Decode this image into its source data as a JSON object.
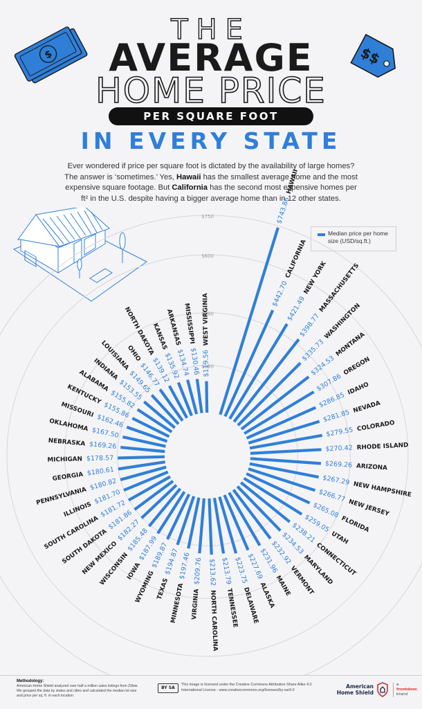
{
  "header": {
    "title_line1": "THE",
    "title_line2": "AVERAGE",
    "title_line3": "HOME PRICE",
    "title_pill": "PER SQUARE FOOT",
    "title_line4": "IN EVERY STATE"
  },
  "intro": {
    "part1": "Ever wondered if price per square foot is dictated by the availability of large homes? The answer is ‘sometimes.’ Yes, ",
    "hawaii": "Hawaii",
    "part2": " has the smallest average home and the most expensive square footage. But ",
    "california": "California",
    "part3": " has the second most expensive homes per ft² in the U.S. despite having a bigger average home than in 12 other states."
  },
  "legend": {
    "label": "Median price per home size (USD/sq.ft.)",
    "color": "#2f7fd9"
  },
  "icons": [
    "dollar-bill-icon",
    "price-tag-icon",
    "house-illustration-icon"
  ],
  "chart_data": {
    "type": "bar",
    "layout": "radial",
    "title": "THE AVERAGE HOME PRICE PER SQUARE FOOT IN EVERY STATE",
    "series": [
      {
        "name": "Median price per home size (USD/sq.ft.)",
        "color": "#2f7fd9"
      }
    ],
    "ring_labels": [
      "$180",
      "$380",
      "$600",
      "$750"
    ],
    "ring_values": [
      180,
      380,
      600,
      750
    ],
    "states": [
      {
        "name": "HAWAII",
        "value": 743.86,
        "label": "$743.86"
      },
      {
        "name": "CALIFORNIA",
        "value": 442.7,
        "label": "$442.70"
      },
      {
        "name": "NEW YORK",
        "value": 421.49,
        "label": "$421.49"
      },
      {
        "name": "MASSACHUSETTS",
        "value": 398.77,
        "label": "$398.77"
      },
      {
        "name": "WASHINGTON",
        "value": 335.73,
        "label": "$335.73"
      },
      {
        "name": "MONTANA",
        "value": 324.53,
        "label": "$324.53"
      },
      {
        "name": "OREGON",
        "value": 307.86,
        "label": "$307.86"
      },
      {
        "name": "IDAHO",
        "value": 286.85,
        "label": "$286.85"
      },
      {
        "name": "NEVADA",
        "value": 281.85,
        "label": "$281.85"
      },
      {
        "name": "COLORADO",
        "value": 279.55,
        "label": "$279.55"
      },
      {
        "name": "RHODE ISLAND",
        "value": 270.42,
        "label": "$270.42"
      },
      {
        "name": "ARIZONA",
        "value": 269.26,
        "label": "$269.26"
      },
      {
        "name": "NEW HAMPSHIRE",
        "value": 267.29,
        "label": "$267.29"
      },
      {
        "name": "NEW JERSEY",
        "value": 266.77,
        "label": "$266.77"
      },
      {
        "name": "FLORIDA",
        "value": 265.08,
        "label": "$265.08"
      },
      {
        "name": "UTAH",
        "value": 259.05,
        "label": "$259.05"
      },
      {
        "name": "CONNECTICUT",
        "value": 238.21,
        "label": "$238.21"
      },
      {
        "name": "MARYLAND",
        "value": 234.53,
        "label": "$234.53"
      },
      {
        "name": "VERMONT",
        "value": 232.92,
        "label": "$232.92"
      },
      {
        "name": "MAINE",
        "value": 231.96,
        "label": "$231.96"
      },
      {
        "name": "ALASKA",
        "value": 227.69,
        "label": "$227.69"
      },
      {
        "name": "DELAWARE",
        "value": 223.75,
        "label": "$223.75"
      },
      {
        "name": "TENNESSEE",
        "value": 213.79,
        "label": "$213.79"
      },
      {
        "name": "NORTH CAROLINA",
        "value": 213.62,
        "label": "$213.62"
      },
      {
        "name": "VIRGINIA",
        "value": 209.76,
        "label": "$209.76"
      },
      {
        "name": "MINNESOTA",
        "value": 197.46,
        "label": "$197.46"
      },
      {
        "name": "TEXAS",
        "value": 194.87,
        "label": "$194.87"
      },
      {
        "name": "WYOMING",
        "value": 189.87,
        "label": "$189.87"
      },
      {
        "name": "IOWA",
        "value": 187.99,
        "label": "$187.99"
      },
      {
        "name": "WISCONSIN",
        "value": 185.48,
        "label": "$185.48"
      },
      {
        "name": "NEW MEXICO",
        "value": 182.27,
        "label": "$182.27"
      },
      {
        "name": "SOUTH DAKOTA",
        "value": 181.86,
        "label": "$181.86"
      },
      {
        "name": "SOUTH CAROLINA",
        "value": 181.72,
        "label": "$181.72"
      },
      {
        "name": "ILLINOIS",
        "value": 181.7,
        "label": "$181.70"
      },
      {
        "name": "PENNSYLVANIA",
        "value": 180.82,
        "label": "$180.82"
      },
      {
        "name": "GEORGIA",
        "value": 180.61,
        "label": "$180.61"
      },
      {
        "name": "MICHIGAN",
        "value": 178.57,
        "label": "$178.57"
      },
      {
        "name": "NEBRASKA",
        "value": 169.26,
        "label": "$169.26"
      },
      {
        "name": "OKLAHOMA",
        "value": 167.5,
        "label": "$167.50"
      },
      {
        "name": "MISSOURI",
        "value": 162.46,
        "label": "$162.46"
      },
      {
        "name": "KENTUCKY",
        "value": 155.86,
        "label": "$155.86"
      },
      {
        "name": "ALABAMA",
        "value": 155.82,
        "label": "$155.82"
      },
      {
        "name": "INDIANA",
        "value": 153.55,
        "label": "$153.55"
      },
      {
        "name": "LOUISIANA",
        "value": 149.65,
        "label": "$149.65"
      },
      {
        "name": "OHIO",
        "value": 146.77,
        "label": "$146.77"
      },
      {
        "name": "NORTH DAKOTA",
        "value": 139.12,
        "label": "$139.12"
      },
      {
        "name": "KANSAS",
        "value": 135.92,
        "label": "$135.92"
      },
      {
        "name": "ARKANSAS",
        "value": 134.74,
        "label": "$134.74"
      },
      {
        "name": "MISSISSIPPI",
        "value": 130.46,
        "label": "$130.46"
      },
      {
        "name": "WEST VIRGINIA",
        "value": 119.56,
        "label": "$119.56"
      }
    ]
  },
  "footer": {
    "methodology_title": "Methodology:",
    "methodology_text": "American Home Shield analyzed over half a million sales listings from Zillow. We grouped the data by states and cities and calculated the median lot size and price per sq. ft. in each location.",
    "cc_badge": "BY SA",
    "license_line1": "This image is licensed under the Creative Commons Attribution-Share Alike 4.0",
    "license_line2": "International License - www.creativecommons.org/licenses/by-sa/4.0",
    "ahs_line1": "American",
    "ahs_line2": "Home Shield",
    "fd_line1": "a",
    "fd_line2": "frontdoor.",
    "fd_line3": "brand"
  }
}
